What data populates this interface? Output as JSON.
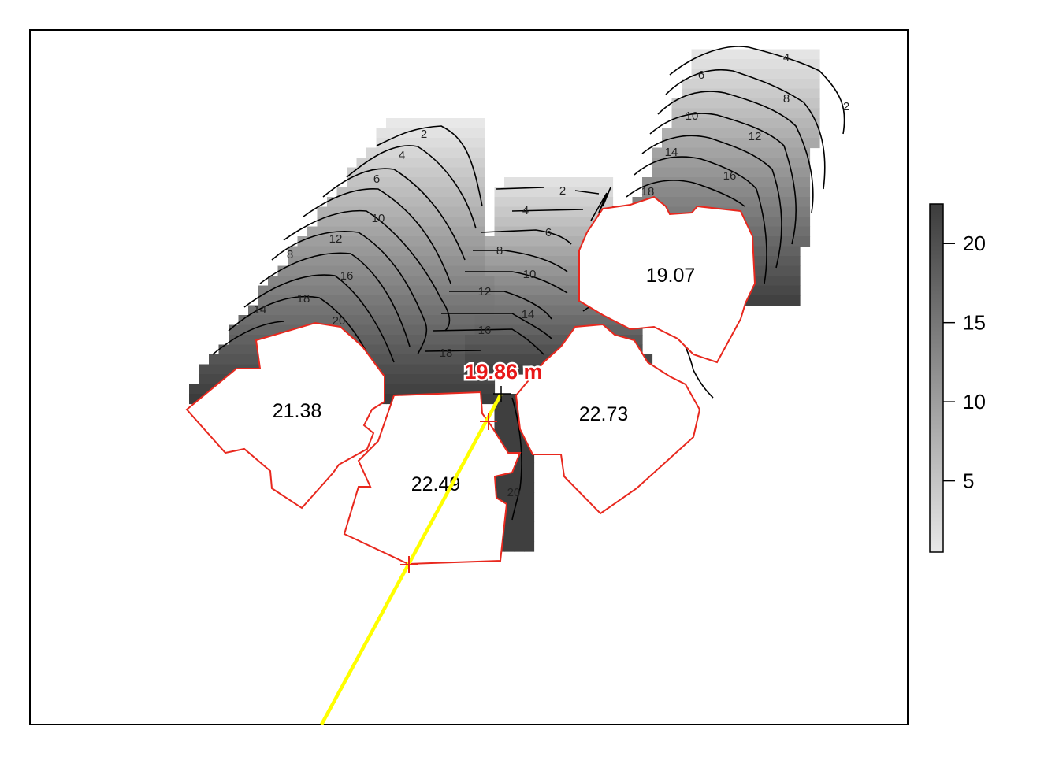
{
  "map": {
    "legend": {
      "ticks": [
        "5",
        "10",
        "15",
        "20"
      ],
      "range": [
        0.5,
        22.5
      ],
      "color_low": "#e8e8e8",
      "color_high": "#3c3c3c"
    },
    "buildings": [
      {
        "label": "21.38"
      },
      {
        "label": "22.49"
      },
      {
        "label": "22.73"
      },
      {
        "label": "19.07"
      }
    ],
    "shadow_height_label": "19.86 m",
    "contour_labels": [
      "2",
      "4",
      "6",
      "8",
      "10",
      "12",
      "14",
      "16",
      "18",
      "20"
    ],
    "colors": {
      "building_outline": "#e8281e",
      "sun_ray": "#ffff00",
      "contour": "#000000",
      "height_label": "#e81818",
      "frame": "#000000"
    }
  }
}
